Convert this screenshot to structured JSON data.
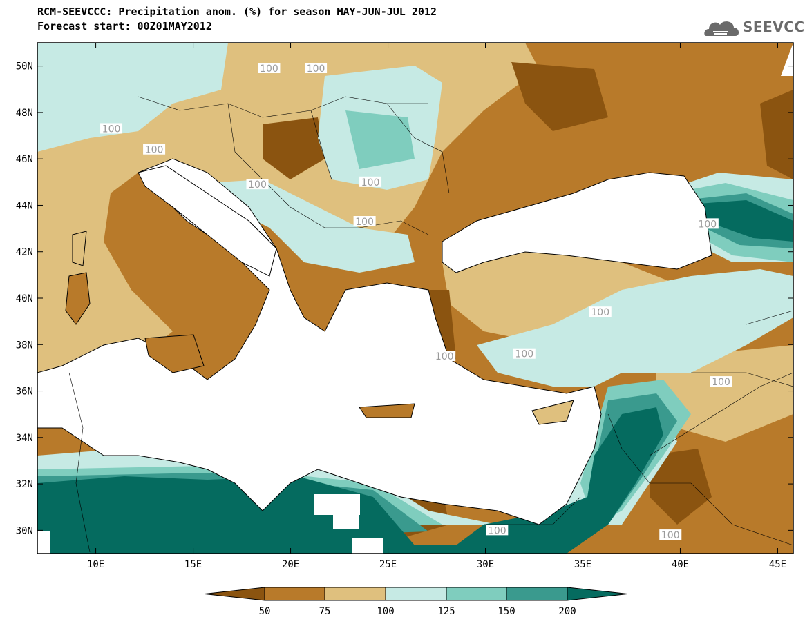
{
  "title_line1": "RCM-SEEVCCC: Precipitation anom. (%) for season MAY-JUN-JUL 2012",
  "title_line2": "Forecast start: 00Z01MAY2012",
  "logo_text": "SEEVCCC",
  "logo_icon": "cloud-icon",
  "lat_labels": [
    "50N",
    "48N",
    "46N",
    "44N",
    "42N",
    "40N",
    "38N",
    "36N",
    "34N",
    "32N",
    "30N"
  ],
  "lat_values": [
    50,
    48,
    46,
    44,
    42,
    40,
    38,
    36,
    34,
    32,
    30
  ],
  "lon_labels": [
    "10E",
    "15E",
    "20E",
    "25E",
    "30E",
    "35E",
    "40E",
    "45E"
  ],
  "lon_values": [
    10,
    15,
    20,
    25,
    30,
    35,
    40,
    45
  ],
  "contour_label": "100",
  "colorbar": {
    "labels": [
      "50",
      "75",
      "100",
      "125",
      "150",
      "200"
    ],
    "colors": [
      "#8B5410",
      "#B87A2A",
      "#DFC07E",
      "#C6EAE4",
      "#7FCDBE",
      "#3A9A8E",
      "#056B5F"
    ]
  },
  "palette": {
    "dark_brown": "#8B5410",
    "brown": "#B87A2A",
    "tan": "#DFC07E",
    "light_teal": "#C6EAE4",
    "teal": "#7FCDBE",
    "dark_teal": "#3A9A8E",
    "deep_teal": "#056B5F",
    "sea": "#ffffff"
  }
}
